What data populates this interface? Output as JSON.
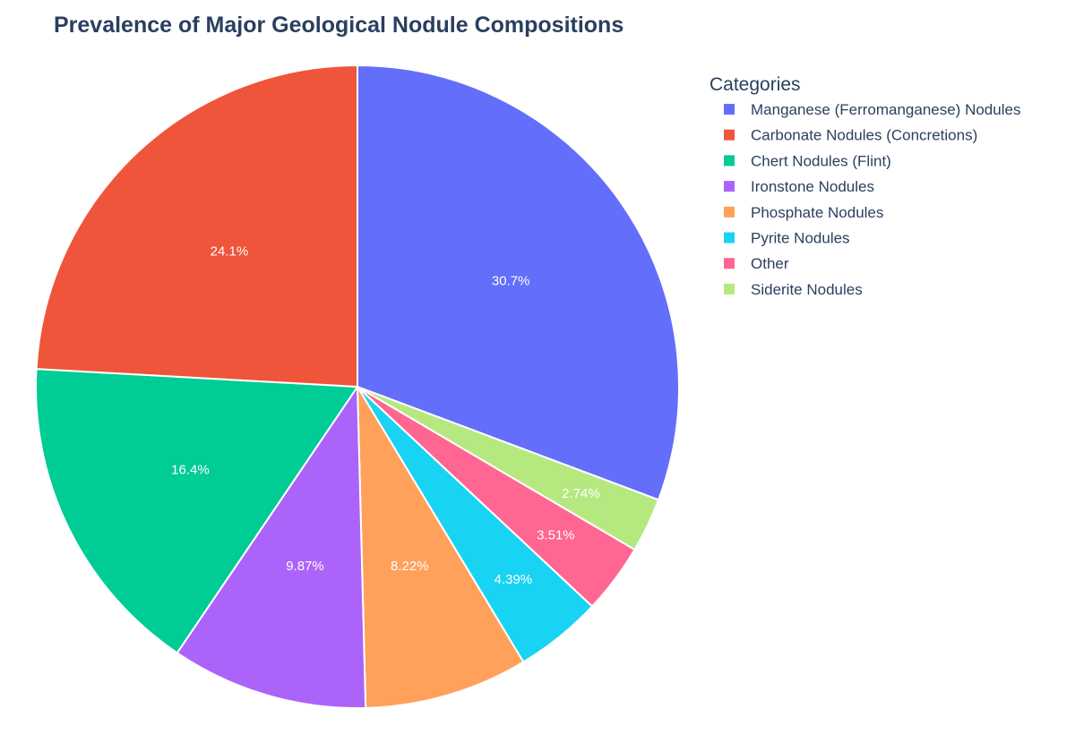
{
  "chart_data": {
    "type": "pie",
    "title": "Prevalence of Major Geological Nodule Compositions",
    "legend": {
      "title": "Categories",
      "placement": "top-right"
    },
    "slices": [
      {
        "label": "Manganese (Ferromanganese) Nodules",
        "percent": 30.7,
        "label_text": "30.7%",
        "color": "#636EFA"
      },
      {
        "label": "Siderite Nodules",
        "percent": 2.74,
        "label_text": "2.74%",
        "color": "#B6E880"
      },
      {
        "label": "Other",
        "percent": 3.51,
        "label_text": "3.51%",
        "color": "#FF6692"
      },
      {
        "label": "Pyrite Nodules",
        "percent": 4.39,
        "label_text": "4.39%",
        "color": "#19D3F3"
      },
      {
        "label": "Phosphate Nodules",
        "percent": 8.22,
        "label_text": "8.22%",
        "color": "#FFA15A"
      },
      {
        "label": "Ironstone Nodules",
        "percent": 9.87,
        "label_text": "9.87%",
        "color": "#AB63FA"
      },
      {
        "label": "Chert Nodules (Flint)",
        "percent": 16.4,
        "label_text": "16.4%",
        "color": "#00CC96"
      },
      {
        "label": "Carbonate Nodules (Concretions)",
        "percent": 24.1,
        "label_text": "24.1%",
        "color": "#EF553B"
      }
    ],
    "legend_order": [
      "Manganese (Ferromanganese) Nodules",
      "Carbonate Nodules (Concretions)",
      "Chert Nodules (Flint)",
      "Ironstone Nodules",
      "Phosphate Nodules",
      "Pyrite Nodules",
      "Other",
      "Siderite Nodules"
    ]
  }
}
